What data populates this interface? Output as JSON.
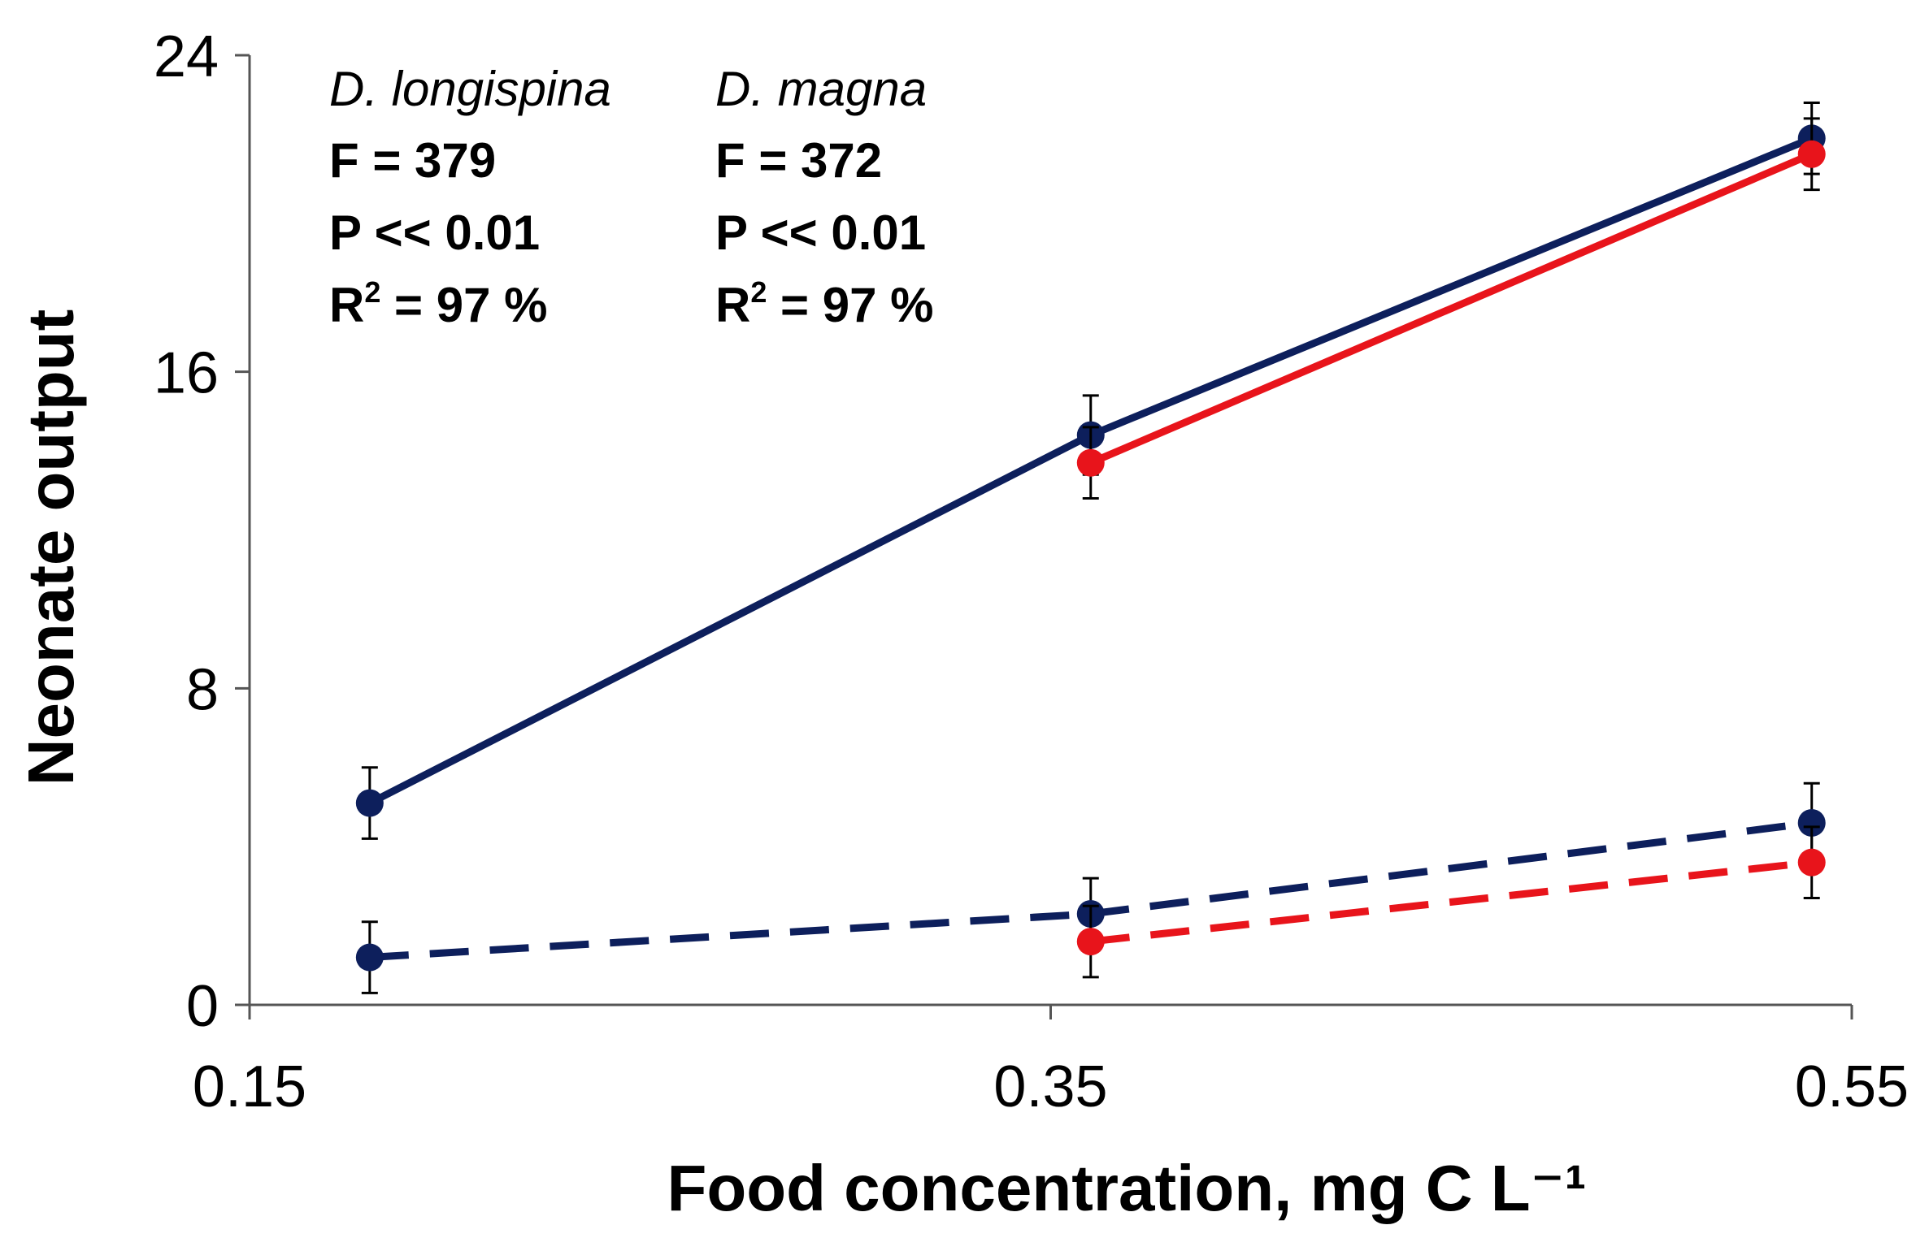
{
  "chart_data": {
    "type": "line",
    "title": "",
    "xlabel": "Food concentration, mg C L⁻¹",
    "ylabel": "Neonate output",
    "xlim": [
      0.15,
      0.55
    ],
    "ylim": [
      0,
      24
    ],
    "x_ticks": [
      "0.15",
      "0.35",
      "0.55"
    ],
    "y_ticks": [
      "0",
      "8",
      "16",
      "24"
    ],
    "grid": false,
    "legend": "none",
    "series": [
      {
        "color": "#0d1f5c",
        "line_style": "solid",
        "x": [
          0.18,
          0.36,
          0.54
        ],
        "y": [
          5.1,
          14.4,
          21.9
        ],
        "error": [
          0.9,
          1.0,
          0.9
        ]
      },
      {
        "color": "#e8141b",
        "line_style": "solid",
        "x": [
          0.36,
          0.54
        ],
        "y": [
          13.7,
          21.5
        ],
        "error": [
          0.9,
          0.9
        ]
      },
      {
        "color": "#0d1f5c",
        "line_style": "dashed",
        "x": [
          0.18,
          0.36,
          0.54
        ],
        "y": [
          1.2,
          2.3,
          4.6
        ],
        "error": [
          0.9,
          0.9,
          1.0
        ]
      },
      {
        "color": "#e8141b",
        "line_style": "dashed",
        "x": [
          0.36,
          0.54
        ],
        "y": [
          1.6,
          3.6
        ],
        "error": [
          0.9,
          0.9
        ]
      }
    ],
    "annotations": [
      {
        "species": "D. longispina",
        "f_stat": "F = 379",
        "p_value": "P << 0.01",
        "r2_label": "R",
        "r2_sup": "2",
        "r2_value": " = 97 %"
      },
      {
        "species": "D. magna",
        "f_stat": "F = 372",
        "p_value": "P << 0.01",
        "r2_label": "R",
        "r2_sup": "2",
        "r2_value": " = 97 %"
      }
    ]
  }
}
